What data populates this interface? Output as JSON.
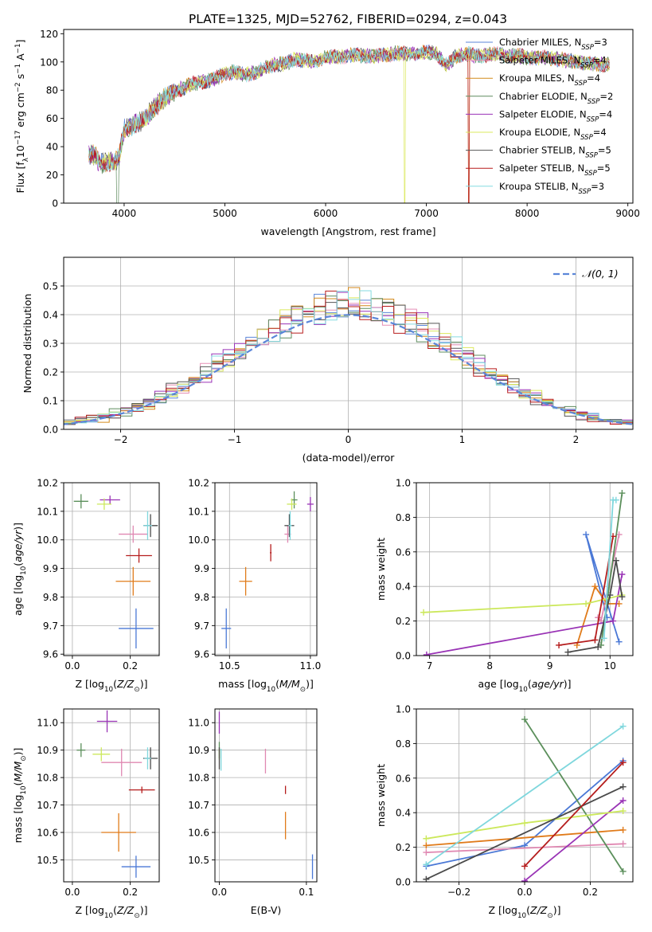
{
  "figure": {
    "title": "PLATE=1325, MJD=52762, FIBERID=0294, z=0.043"
  },
  "colors": {
    "series": [
      "#5b86d9",
      "#e58fb6",
      "#d38a1c",
      "#5f8c5f",
      "#9a33b8",
      "#dbe85c",
      "#555555",
      "#b81c1c",
      "#86dbe0"
    ],
    "series_marker": [
      "#4a78d6",
      "#e088b2",
      "#e07b1a",
      "#5b8f5b",
      "#9933b5",
      "#cce85c",
      "#4a4a4a",
      "#b51d1d",
      "#7fd7dd"
    ],
    "gaussian": "#5b86d9",
    "grid": "#b0b0b0"
  },
  "chart_data": [
    {
      "id": "spectrum",
      "type": "line",
      "xlabel": "wavelength [Angstrom, rest frame]",
      "ylabel": "Flux [f_λ10^-17 erg cm^-2 s^-1 A^-1]",
      "xlim": [
        3400,
        9050
      ],
      "ylim": [
        0,
        123
      ],
      "xticks": [
        4000,
        5000,
        6000,
        7000,
        8000,
        9000
      ],
      "yticks": [
        0,
        20,
        40,
        60,
        80,
        100,
        120
      ],
      "grid": false,
      "legend_position": "upper-right",
      "legend": [
        {
          "base": "Chabrier MILES, N",
          "sub": "SSP",
          "tail": "=3"
        },
        {
          "base": "Salpeter MILES, N",
          "sub": "SSP",
          "tail": "=4"
        },
        {
          "base": "Kroupa MILES, N",
          "sub": "SSP",
          "tail": "=4"
        },
        {
          "base": "Chabrier ELODIE, N",
          "sub": "SSP",
          "tail": "=2"
        },
        {
          "base": "Salpeter ELODIE, N",
          "sub": "SSP",
          "tail": "=4"
        },
        {
          "base": "Kroupa ELODIE, N",
          "sub": "SSP",
          "tail": "=4"
        },
        {
          "base": "Chabrier STELIB, N",
          "sub": "SSP",
          "tail": "=5"
        },
        {
          "base": "Salpeter STELIB, N",
          "sub": "SSP",
          "tail": "=5"
        },
        {
          "base": "Kroupa STELIB, N",
          "sub": "SSP",
          "tail": "=3"
        }
      ],
      "continuum": {
        "x": [
          3650,
          3700,
          3750,
          3800,
          3850,
          3900,
          3950,
          4000,
          4100,
          4200,
          4300,
          4400,
          4500,
          4600,
          4700,
          4800,
          4900,
          5000,
          5100,
          5200,
          5300,
          5400,
          5500,
          5600,
          5700,
          5800,
          5900,
          6000,
          6100,
          6200,
          6300,
          6400,
          6500,
          6600,
          6700,
          6800,
          6900,
          7000,
          7100,
          7200,
          7300,
          7400,
          7500,
          7600,
          7700,
          7800,
          7900,
          8000,
          8200,
          8400,
          8600,
          8800
        ],
        "y": [
          35,
          34,
          30,
          28,
          30,
          28,
          33,
          52,
          56,
          59,
          68,
          74,
          79,
          82,
          85,
          86,
          88,
          92,
          93,
          91,
          92,
          96,
          98,
          99,
          102,
          101,
          100,
          103,
          104,
          104,
          105,
          104,
          104,
          105,
          106,
          106,
          106,
          107,
          106,
          98,
          104,
          106,
          104,
          105,
          106,
          104,
          105,
          103,
          103,
          101,
          99,
          98
        ]
      },
      "dips": [
        {
          "x": 3934,
          "series": 3
        },
        {
          "x": 6783,
          "series": 5
        },
        {
          "x": 7420,
          "series": 2
        }
      ]
    },
    {
      "id": "residual-histogram",
      "type": "histogram",
      "xlabel": "(data-model)/error",
      "ylabel": "Normed distribution",
      "xlim": [
        -2.5,
        2.5
      ],
      "ylim": [
        0,
        0.6
      ],
      "xticks": [
        -2,
        -1,
        0,
        1,
        2
      ],
      "yticks": [
        0.0,
        0.1,
        0.2,
        0.3,
        0.4,
        0.5
      ],
      "grid": true,
      "bin_width": 0.1,
      "overlay": {
        "name": "𝒩(0, 1)",
        "mean": 0,
        "std": 1
      }
    },
    {
      "id": "age-vs-Z",
      "type": "errorbar",
      "xlabel": "Z [log10(Z/Z⊙)]",
      "ylabel": "age [log10(age/yr)]",
      "xlim": [
        -0.03,
        0.3
      ],
      "ylim": [
        9.595,
        10.2
      ],
      "xticks": [
        0.0,
        0.2
      ],
      "yticks": [
        9.6,
        9.7,
        9.8,
        9.9,
        10.0,
        10.1,
        10.2
      ],
      "grid": true,
      "points": [
        {
          "series": 0,
          "x": 0.22,
          "y": 9.69,
          "xerr": 0.06,
          "yerr": 0.07
        },
        {
          "series": 1,
          "x": 0.21,
          "y": 10.02,
          "xerr": 0.05,
          "yerr": 0.03
        },
        {
          "series": 2,
          "x": 0.21,
          "y": 9.855,
          "xerr": 0.06,
          "yerr": 0.05
        },
        {
          "series": 3,
          "x": 0.03,
          "y": 10.135,
          "xerr": 0.025,
          "yerr": 0.025
        },
        {
          "series": 4,
          "x": 0.13,
          "y": 10.14,
          "xerr": 0.035,
          "yerr": 0.015
        },
        {
          "series": 5,
          "x": 0.11,
          "y": 10.125,
          "xerr": 0.025,
          "yerr": 0.02
        },
        {
          "series": 6,
          "x": 0.27,
          "y": 10.05,
          "xerr": 0.025,
          "yerr": 0.04
        },
        {
          "series": 7,
          "x": 0.23,
          "y": 9.945,
          "xerr": 0.045,
          "yerr": 0.025
        },
        {
          "series": 8,
          "x": 0.26,
          "y": 10.05,
          "xerr": 0.015,
          "yerr": 0.05
        }
      ]
    },
    {
      "id": "age-vs-mass",
      "type": "errorbar",
      "xlabel": "mass [log10(M/M⊙)]",
      "ylabel": "",
      "xlim": [
        10.41,
        11.04
      ],
      "ylim": [
        9.595,
        10.2
      ],
      "xticks": [
        10.5,
        11.0
      ],
      "yticks": [
        9.6,
        9.7,
        9.8,
        9.9,
        10.0,
        10.1,
        10.2
      ],
      "grid": true,
      "points": [
        {
          "series": 0,
          "x": 10.48,
          "y": 9.69,
          "xerr": 0.03,
          "yerr": 0.07
        },
        {
          "series": 1,
          "x": 10.86,
          "y": 10.02,
          "xerr": 0.02,
          "yerr": 0.03
        },
        {
          "series": 2,
          "x": 10.6,
          "y": 9.855,
          "xerr": 0.04,
          "yerr": 0.05
        },
        {
          "series": 3,
          "x": 10.9,
          "y": 10.14,
          "xerr": 0.02,
          "yerr": 0.03
        },
        {
          "series": 4,
          "x": 11.0,
          "y": 10.125,
          "xerr": 0.02,
          "yerr": 0.025
        },
        {
          "series": 5,
          "x": 10.885,
          "y": 10.125,
          "xerr": 0.03,
          "yerr": 0.02
        },
        {
          "series": 6,
          "x": 10.87,
          "y": 10.05,
          "xerr": 0.03,
          "yerr": 0.04
        },
        {
          "series": 7,
          "x": 10.755,
          "y": 9.955,
          "xerr": 0.005,
          "yerr": 0.03
        },
        {
          "series": 8,
          "x": 10.875,
          "y": 10.05,
          "xerr": 0.01,
          "yerr": 0.05
        }
      ]
    },
    {
      "id": "mass-weight-vs-age",
      "type": "line",
      "xlabel": "age [log10(age/yr)]",
      "ylabel": "mass weight",
      "xlim": [
        6.78,
        10.38
      ],
      "ylim": [
        0,
        1.0
      ],
      "xticks": [
        7,
        8,
        9,
        10
      ],
      "yticks": [
        0.0,
        0.2,
        0.4,
        0.6,
        0.8,
        1.0
      ],
      "grid": true,
      "series": [
        {
          "series": 0,
          "x": [
            10.15,
            9.6,
            9.95
          ],
          "y": [
            0.08,
            0.7,
            0.22
          ]
        },
        {
          "series": 1,
          "x": [
            9.8,
            9.85,
            10.15
          ],
          "y": [
            0.22,
            0.2,
            0.7
          ]
        },
        {
          "series": 2,
          "x": [
            9.45,
            9.75,
            9.95,
            10.15
          ],
          "y": [
            0.06,
            0.4,
            0.3,
            0.3
          ]
        },
        {
          "series": 3,
          "x": [
            10.2,
            9.85
          ],
          "y": [
            0.94,
            0.06
          ]
        },
        {
          "series": 4,
          "x": [
            6.95,
            10.05,
            10.2
          ],
          "y": [
            0.005,
            0.2,
            0.47
          ]
        },
        {
          "series": 5,
          "x": [
            6.9,
            9.6,
            10.2
          ],
          "y": [
            0.25,
            0.3,
            0.35
          ]
        },
        {
          "series": 6,
          "x": [
            9.3,
            9.8,
            10.0,
            10.1,
            10.2
          ],
          "y": [
            0.02,
            0.05,
            0.35,
            0.55,
            0.34
          ]
        },
        {
          "series": 7,
          "x": [
            9.15,
            9.75,
            10.05
          ],
          "y": [
            0.06,
            0.09,
            0.69
          ]
        },
        {
          "series": 8,
          "x": [
            9.9,
            10.05,
            10.1
          ],
          "y": [
            0.1,
            0.9,
            0.9
          ]
        }
      ]
    },
    {
      "id": "mass-vs-Z",
      "type": "errorbar",
      "xlabel": "Z [log10(Z/Z⊙)]",
      "ylabel": "mass [log10(M/M⊙)]",
      "xlim": [
        -0.03,
        0.3
      ],
      "ylim": [
        10.42,
        11.05
      ],
      "xticks": [
        0.0,
        0.2
      ],
      "yticks": [
        10.5,
        10.6,
        10.7,
        10.8,
        10.9,
        11.0
      ],
      "grid": true,
      "points": [
        {
          "series": 0,
          "x": 0.22,
          "y": 10.475,
          "xerr": 0.05,
          "yerr": 0.04
        },
        {
          "series": 1,
          "x": 0.17,
          "y": 10.855,
          "xerr": 0.07,
          "yerr": 0.05
        },
        {
          "series": 2,
          "x": 0.16,
          "y": 10.6,
          "xerr": 0.06,
          "yerr": 0.07
        },
        {
          "series": 3,
          "x": 0.03,
          "y": 10.9,
          "xerr": 0.015,
          "yerr": 0.025
        },
        {
          "series": 4,
          "x": 0.12,
          "y": 11.005,
          "xerr": 0.035,
          "yerr": 0.04
        },
        {
          "series": 5,
          "x": 0.1,
          "y": 10.885,
          "xerr": 0.03,
          "yerr": 0.025
        },
        {
          "series": 6,
          "x": 0.27,
          "y": 10.87,
          "xerr": 0.025,
          "yerr": 0.04
        },
        {
          "series": 7,
          "x": 0.24,
          "y": 10.755,
          "xerr": 0.045,
          "yerr": 0.012
        },
        {
          "series": 8,
          "x": 0.26,
          "y": 10.87,
          "xerr": 0.012,
          "yerr": 0.04
        }
      ]
    },
    {
      "id": "mass-vs-ebv",
      "type": "errorbar",
      "xlabel": "E(B-V)",
      "ylabel": "",
      "xlim": [
        -0.005,
        0.112
      ],
      "ylim": [
        10.42,
        11.05
      ],
      "xticks": [
        0.0,
        0.1
      ],
      "yticks": [
        10.5,
        10.6,
        10.7,
        10.8,
        10.9,
        11.0
      ],
      "grid": true,
      "points": [
        {
          "series": 0,
          "x": 0.107,
          "y": 10.475,
          "xerr": 0,
          "yerr": 0.045
        },
        {
          "series": 1,
          "x": 0.053,
          "y": 10.86,
          "xerr": 0,
          "yerr": 0.045
        },
        {
          "series": 2,
          "x": 0.076,
          "y": 10.625,
          "xerr": 0,
          "yerr": 0.05
        },
        {
          "series": 3,
          "x": 0.0,
          "y": 10.9,
          "xerr": 0,
          "yerr": 0.03
        },
        {
          "series": 4,
          "x": 0.0,
          "y": 11.0,
          "xerr": 0,
          "yerr": 0.04
        },
        {
          "series": 5,
          "x": 0.0,
          "y": 10.885,
          "xerr": 0,
          "yerr": 0.02
        },
        {
          "series": 6,
          "x": 0.0,
          "y": 10.87,
          "xerr": 0,
          "yerr": 0.04
        },
        {
          "series": 7,
          "x": 0.076,
          "y": 10.755,
          "xerr": 0,
          "yerr": 0.015
        },
        {
          "series": 8,
          "x": 0.002,
          "y": 10.865,
          "xerr": 0,
          "yerr": 0.04
        }
      ]
    },
    {
      "id": "mass-weight-vs-Z",
      "type": "line",
      "xlabel": "Z [log10(Z/Z⊙)]",
      "ylabel": "mass weight",
      "xlim": [
        -0.33,
        0.33
      ],
      "ylim": [
        0,
        1.0
      ],
      "xticks": [
        -0.2,
        0.0,
        0.2
      ],
      "yticks": [
        0.0,
        0.2,
        0.4,
        0.6,
        0.8,
        1.0
      ],
      "grid": true,
      "series": [
        {
          "series": 0,
          "x": [
            -0.3,
            0.0,
            0.3
          ],
          "y": [
            0.09,
            0.21,
            0.7
          ]
        },
        {
          "series": 1,
          "x": [
            -0.3,
            0.3
          ],
          "y": [
            0.17,
            0.22
          ]
        },
        {
          "series": 2,
          "x": [
            -0.3,
            0.3
          ],
          "y": [
            0.21,
            0.3
          ]
        },
        {
          "series": 3,
          "x": [
            0.0,
            0.3
          ],
          "y": [
            0.94,
            0.06
          ]
        },
        {
          "series": 4,
          "x": [
            0.0,
            0.3
          ],
          "y": [
            0.005,
            0.47
          ]
        },
        {
          "series": 5,
          "x": [
            -0.3,
            0.0,
            0.3
          ],
          "y": [
            0.25,
            0.34,
            0.41
          ]
        },
        {
          "series": 6,
          "x": [
            -0.3,
            0.3
          ],
          "y": [
            0.015,
            0.55
          ]
        },
        {
          "series": 7,
          "x": [
            0.0,
            0.3
          ],
          "y": [
            0.09,
            0.69
          ]
        },
        {
          "series": 8,
          "x": [
            -0.3,
            0.3
          ],
          "y": [
            0.1,
            0.9
          ]
        }
      ]
    }
  ]
}
